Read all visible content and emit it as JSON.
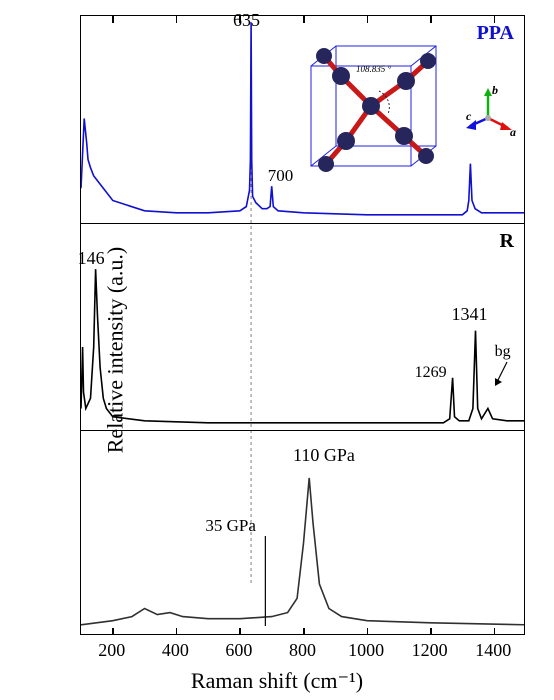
{
  "axes": {
    "xlabel": "Raman shift (cm⁻¹)",
    "ylabel": "Relative intensity (a.u.)",
    "xlim": [
      100,
      1500
    ],
    "xticks": [
      200,
      400,
      600,
      800,
      1000,
      1200,
      1400
    ],
    "label_fontsize": 22,
    "tick_fontsize": 18,
    "border_color": "#000000",
    "background": "#ffffff"
  },
  "panels": [
    {
      "name": "PPA",
      "label": "PPA",
      "label_color": "#1010d0",
      "line_color": "#1010d0",
      "line_width": 1.6,
      "peaks": [
        {
          "x": 635,
          "label": "635",
          "label_pos": "above"
        },
        {
          "x": 700,
          "label": "700",
          "label_pos": "right-below"
        }
      ],
      "spectrum_points": [
        [
          100,
          0.16
        ],
        [
          110,
          0.5
        ],
        [
          118,
          0.38
        ],
        [
          122,
          0.3
        ],
        [
          130,
          0.26
        ],
        [
          140,
          0.22
        ],
        [
          160,
          0.18
        ],
        [
          200,
          0.1
        ],
        [
          300,
          0.05
        ],
        [
          400,
          0.04
        ],
        [
          500,
          0.04
        ],
        [
          600,
          0.05
        ],
        [
          620,
          0.07
        ],
        [
          630,
          0.15
        ],
        [
          633,
          0.3
        ],
        [
          635,
          0.97
        ],
        [
          637,
          0.3
        ],
        [
          640,
          0.12
        ],
        [
          650,
          0.09
        ],
        [
          670,
          0.06
        ],
        [
          685,
          0.06
        ],
        [
          695,
          0.07
        ],
        [
          700,
          0.17
        ],
        [
          705,
          0.07
        ],
        [
          720,
          0.05
        ],
        [
          800,
          0.04
        ],
        [
          1000,
          0.03
        ],
        [
          1200,
          0.03
        ],
        [
          1300,
          0.03
        ],
        [
          1315,
          0.05
        ],
        [
          1320,
          0.1
        ],
        [
          1325,
          0.28
        ],
        [
          1330,
          0.1
        ],
        [
          1340,
          0.06
        ],
        [
          1360,
          0.04
        ],
        [
          1500,
          0.04
        ]
      ],
      "inset": {
        "angle_label": "108.835 °",
        "atom_color": "#26265c",
        "bond_color": "#c81818",
        "box_color": "#2020e0",
        "axes_labels": {
          "a": "a",
          "b": "b",
          "c": "c"
        },
        "axes_colors": {
          "a": "#e01010",
          "b": "#10b010",
          "c": "#1010e0"
        }
      }
    },
    {
      "name": "R",
      "label": "R",
      "label_color": "#000000",
      "line_color": "#000000",
      "line_width": 1.6,
      "peaks": [
        {
          "x": 146,
          "label": "146"
        },
        {
          "x": 1269,
          "label": "1269"
        },
        {
          "x": 1341,
          "label": "1341"
        },
        {
          "x": 1390,
          "label": "bg",
          "arrow": true
        }
      ],
      "spectrum_points": [
        [
          100,
          0.1
        ],
        [
          105,
          0.4
        ],
        [
          108,
          0.18
        ],
        [
          115,
          0.1
        ],
        [
          130,
          0.15
        ],
        [
          140,
          0.4
        ],
        [
          146,
          0.78
        ],
        [
          152,
          0.55
        ],
        [
          160,
          0.3
        ],
        [
          170,
          0.15
        ],
        [
          180,
          0.1
        ],
        [
          200,
          0.06
        ],
        [
          300,
          0.04
        ],
        [
          500,
          0.03
        ],
        [
          800,
          0.03
        ],
        [
          1100,
          0.03
        ],
        [
          1240,
          0.03
        ],
        [
          1260,
          0.05
        ],
        [
          1269,
          0.25
        ],
        [
          1275,
          0.06
        ],
        [
          1290,
          0.04
        ],
        [
          1320,
          0.04
        ],
        [
          1333,
          0.1
        ],
        [
          1341,
          0.48
        ],
        [
          1348,
          0.1
        ],
        [
          1360,
          0.05
        ],
        [
          1380,
          0.1
        ],
        [
          1395,
          0.05
        ],
        [
          1440,
          0.04
        ],
        [
          1500,
          0.04
        ]
      ]
    },
    {
      "name": "pressure",
      "label": "",
      "line_color": "#303030",
      "line_width": 1.6,
      "annotations": [
        {
          "text": "110 GPa",
          "x": 830,
          "label": true
        },
        {
          "text": "35 GPa",
          "x": 680,
          "vline": true
        }
      ],
      "spectrum_points": [
        [
          100,
          0.05
        ],
        [
          200,
          0.07
        ],
        [
          260,
          0.09
        ],
        [
          300,
          0.13
        ],
        [
          340,
          0.1
        ],
        [
          380,
          0.11
        ],
        [
          420,
          0.09
        ],
        [
          500,
          0.08
        ],
        [
          600,
          0.08
        ],
        [
          700,
          0.09
        ],
        [
          750,
          0.11
        ],
        [
          780,
          0.18
        ],
        [
          800,
          0.45
        ],
        [
          818,
          0.77
        ],
        [
          830,
          0.55
        ],
        [
          850,
          0.25
        ],
        [
          880,
          0.13
        ],
        [
          920,
          0.09
        ],
        [
          1000,
          0.07
        ],
        [
          1200,
          0.06
        ],
        [
          1500,
          0.05
        ]
      ]
    }
  ],
  "guide_line": {
    "x": 635,
    "style": "dashed",
    "color": "#808080"
  }
}
